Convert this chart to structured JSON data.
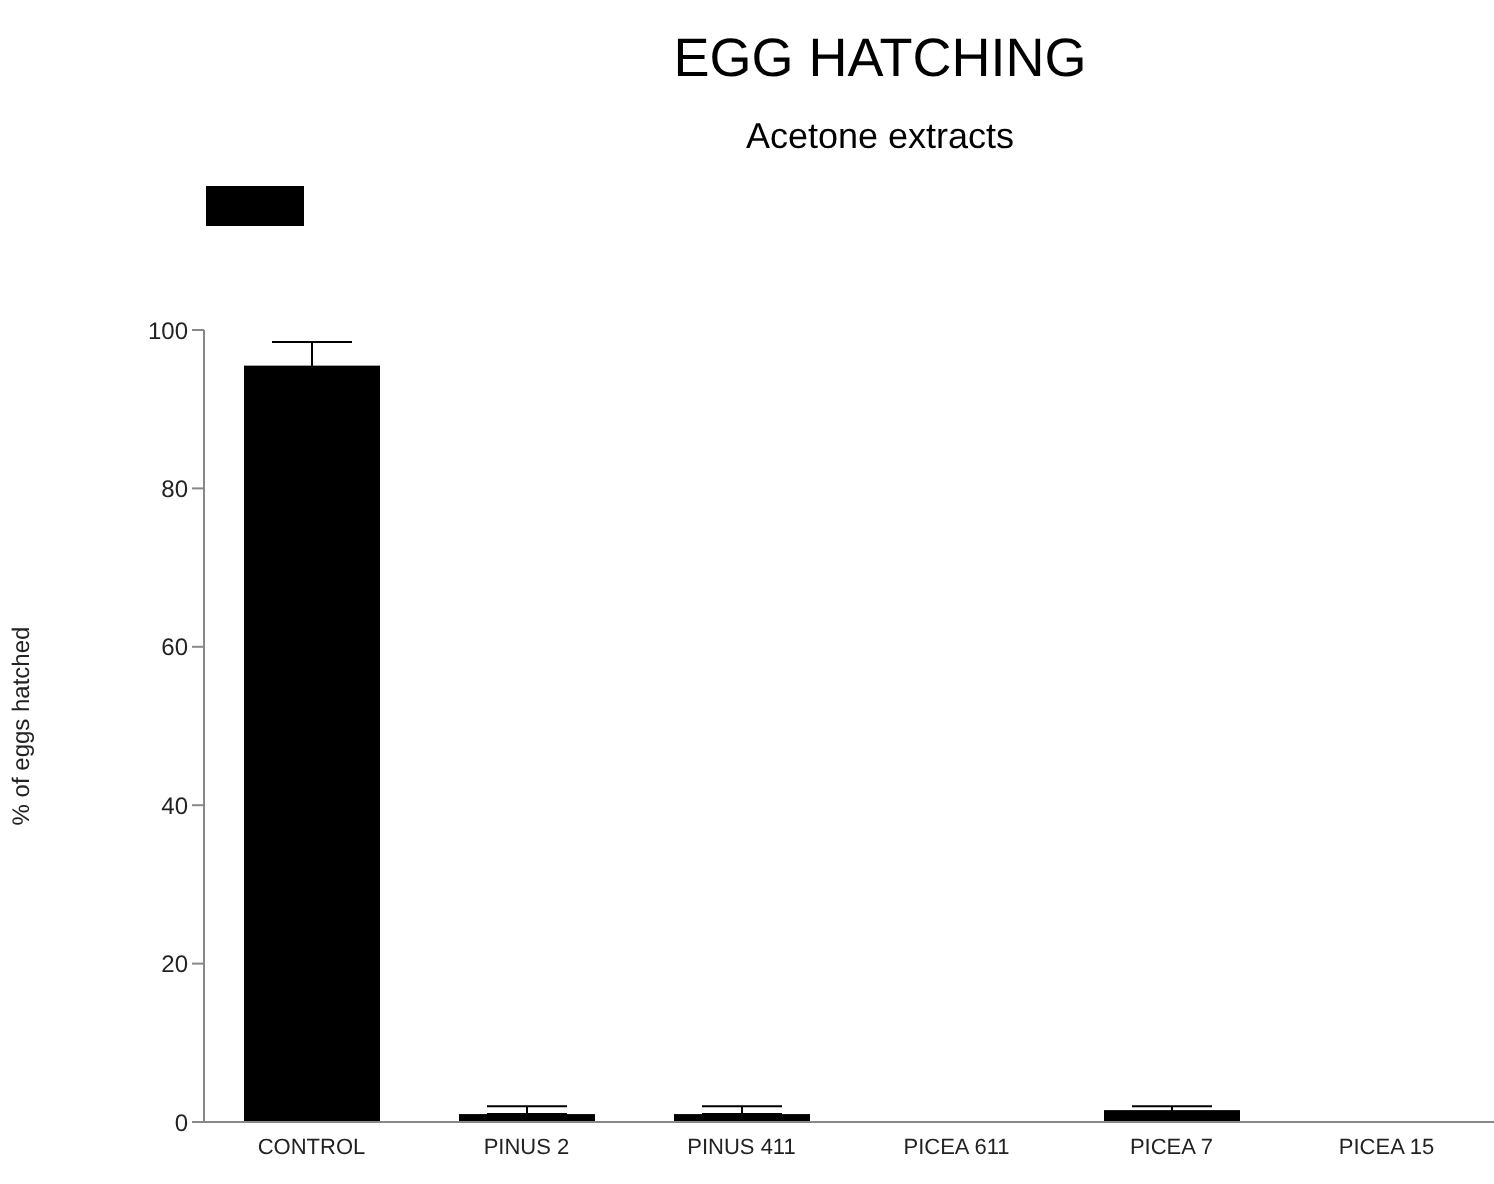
{
  "chart_data": {
    "type": "bar",
    "title": "EGG HATCHING",
    "subtitle": "Acetone extracts",
    "ylabel": "% of eggs hatched",
    "categories": [
      "CONTROL",
      "PINUS 2",
      "PINUS 411",
      "PICEA 611",
      "PICEA 7",
      "PICEA 15"
    ],
    "series": [
      {
        "color": "#000000",
        "values": [
          95.5,
          1,
          1,
          0,
          1.5,
          0
        ],
        "errors": [
          3,
          [
            1,
            2
          ],
          [
            1,
            2
          ],
          0,
          0.5,
          0
        ]
      }
    ],
    "ylim": [
      0,
      100
    ],
    "yticks": [
      0,
      20,
      40,
      60,
      80,
      100
    ],
    "grid": false
  }
}
